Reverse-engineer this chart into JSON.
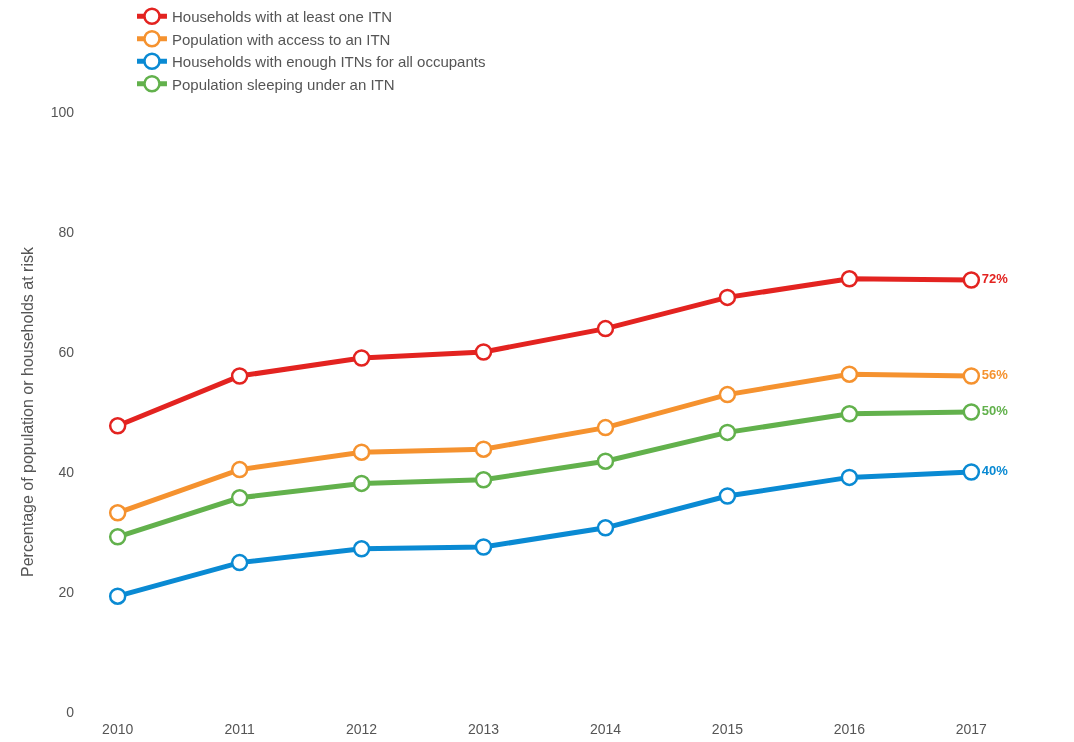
{
  "chart_data": {
    "type": "line",
    "ylabel": "Percentage of population or households at risk",
    "categories": [
      "2010",
      "2011",
      "2012",
      "2013",
      "2014",
      "2015",
      "2016",
      "2017"
    ],
    "series": [
      {
        "name": "Households with at least one ITN",
        "color": "#e32320",
        "values": [
          47.7,
          56.0,
          59.0,
          60.0,
          63.9,
          69.1,
          72.2,
          72
        ],
        "value_labels": [
          null,
          null,
          null,
          null,
          null,
          null,
          null,
          "72%"
        ]
      },
      {
        "name": "Population with access to an ITN",
        "color": "#f5922f",
        "values": [
          33.2,
          40.4,
          43.3,
          43.8,
          47.4,
          52.9,
          56.3,
          56
        ],
        "value_labels": [
          null,
          null,
          null,
          null,
          null,
          null,
          null,
          "56%"
        ]
      },
      {
        "name": "Households with enough ITNs for all occupants",
        "color": "#0a8ad3",
        "values": [
          19.3,
          24.9,
          27.2,
          27.5,
          30.7,
          36.0,
          39.1,
          40
        ],
        "value_labels": [
          null,
          null,
          null,
          null,
          null,
          null,
          null,
          "40%"
        ]
      },
      {
        "name": "Population sleeping under an ITN",
        "color": "#62b14c",
        "values": [
          29.2,
          35.7,
          38.1,
          38.7,
          41.8,
          46.6,
          49.7,
          50
        ],
        "value_labels": [
          null,
          null,
          null,
          null,
          null,
          null,
          null,
          "50%"
        ]
      }
    ],
    "ylim": [
      0,
      100
    ],
    "yticks": [
      0,
      20,
      40,
      60,
      80,
      100
    ],
    "grid": false,
    "legend": "top",
    "marker": "circle",
    "line_style": "solid"
  }
}
